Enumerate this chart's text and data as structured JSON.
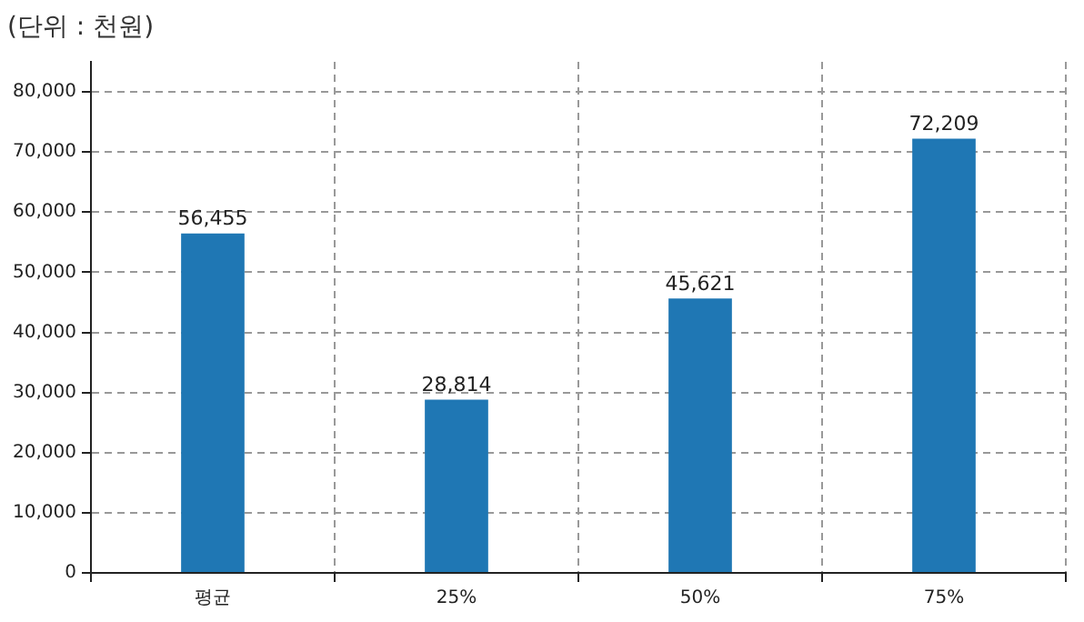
{
  "chart_data": {
    "type": "bar",
    "ylabel": "(단위 : 천원)",
    "categories": [
      "평균",
      "25%",
      "50%",
      "75%"
    ],
    "values": [
      56455,
      28814,
      45621,
      72209
    ],
    "color": "#1f77b4",
    "ylim": [
      0,
      85000
    ],
    "yticks": [
      {
        "value": 0,
        "label": "0"
      },
      {
        "value": 10000,
        "label": "10,000"
      },
      {
        "value": 20000,
        "label": "20,000"
      },
      {
        "value": 30000,
        "label": "30,000"
      },
      {
        "value": 40000,
        "label": "40,000"
      },
      {
        "value": 50000,
        "label": "50,000"
      },
      {
        "value": 60000,
        "label": "60,000"
      },
      {
        "value": 70000,
        "label": "70,000"
      },
      {
        "value": 80000,
        "label": "80,000"
      }
    ],
    "value_labels": [
      "56,455",
      "28,814",
      "45,621",
      "72,209"
    ],
    "grid": true
  }
}
